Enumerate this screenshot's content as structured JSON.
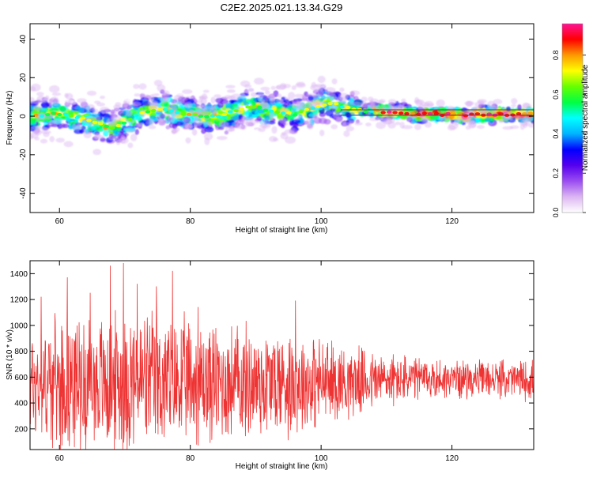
{
  "title": "C2E2.2025.021.13.34.G29",
  "colors": {
    "snr_line": "#ee3333",
    "track": "#444444",
    "frame": "#000000"
  },
  "chart_data": [
    {
      "type": "heatmap",
      "xlabel": "Height of straight line (km)",
      "ylabel": "Frequency (Hz)",
      "xlim": [
        55.5,
        132.5
      ],
      "ylim": [
        -50,
        48
      ],
      "xticks": [
        60,
        80,
        100,
        120
      ],
      "yticks": [
        -40,
        -20,
        0,
        20,
        40
      ],
      "colorbar": {
        "label": "Normalized spectral amplitude",
        "range": [
          0,
          0.96
        ],
        "ticks": [
          0.0,
          0.2,
          0.4,
          0.6,
          0.8
        ],
        "colormap": [
          "#ffffff",
          "#dcb6f2",
          "#9a4cf0",
          "#5500ee",
          "#0000ff",
          "#00b4ff",
          "#00ffff",
          "#00ff44",
          "#66ff00",
          "#ffff00",
          "#ff9900",
          "#ff0000",
          "#ff1493"
        ]
      },
      "reference_line_hz": [
        3.3,
        0.5
      ],
      "ridge_frequency": {
        "x": [
          56,
          58,
          60,
          62,
          64,
          66,
          68,
          70,
          72,
          74,
          76,
          78,
          80,
          82,
          84,
          86,
          88,
          90,
          92,
          94,
          96,
          98,
          100,
          102,
          104,
          106,
          108,
          110,
          112,
          114,
          116,
          118,
          120,
          122,
          124,
          126,
          128,
          130,
          132
        ],
        "y": [
          0,
          1,
          1,
          0,
          -2,
          -4,
          -6,
          -3,
          1,
          3,
          4,
          2,
          1,
          0,
          0,
          2,
          4,
          5,
          3,
          2,
          1,
          3,
          6,
          7,
          4,
          3,
          3,
          2,
          2,
          1,
          1,
          1,
          1,
          0,
          1,
          1,
          1,
          1,
          1
        ]
      }
    },
    {
      "type": "line",
      "xlabel": "Height of straight line (km)",
      "ylabel": "SNR (10 * v/v)",
      "xlim": [
        55.5,
        132.5
      ],
      "ylim": [
        40,
        1500
      ],
      "xticks": [
        60,
        80,
        100,
        120
      ],
      "yticks": [
        200,
        400,
        600,
        800,
        1000,
        1200,
        1400
      ],
      "series": [
        {
          "samples": 1500,
          "envelope": {
            "x": [
              56,
              60,
              65,
              70,
              75,
              80,
              85,
              90,
              95,
              100,
              105,
              110,
              115,
              120,
              125,
              130,
              132
            ],
            "mean": [
              550,
              560,
              560,
              560,
              560,
              560,
              555,
              560,
              560,
              560,
              570,
              580,
              585,
              585,
              585,
              580,
              580
            ],
            "amplitude": [
              420,
              460,
              480,
              520,
              500,
              460,
              440,
              420,
              400,
              330,
              250,
              200,
              160,
              140,
              130,
              140,
              150
            ]
          },
          "peaks": [
            {
              "x": 69.8,
              "y": 1480
            },
            {
              "x": 67.8,
              "y": 1460
            },
            {
              "x": 77.3,
              "y": 1420
            },
            {
              "x": 61.2,
              "y": 1370
            },
            {
              "x": 71.9,
              "y": 1320
            },
            {
              "x": 74.8,
              "y": 1300
            },
            {
              "x": 57.2,
              "y": 1220
            },
            {
              "x": 64.7,
              "y": 1250
            },
            {
              "x": 96.1,
              "y": 1190
            },
            {
              "x": 81.2,
              "y": 1140
            }
          ]
        }
      ]
    }
  ]
}
